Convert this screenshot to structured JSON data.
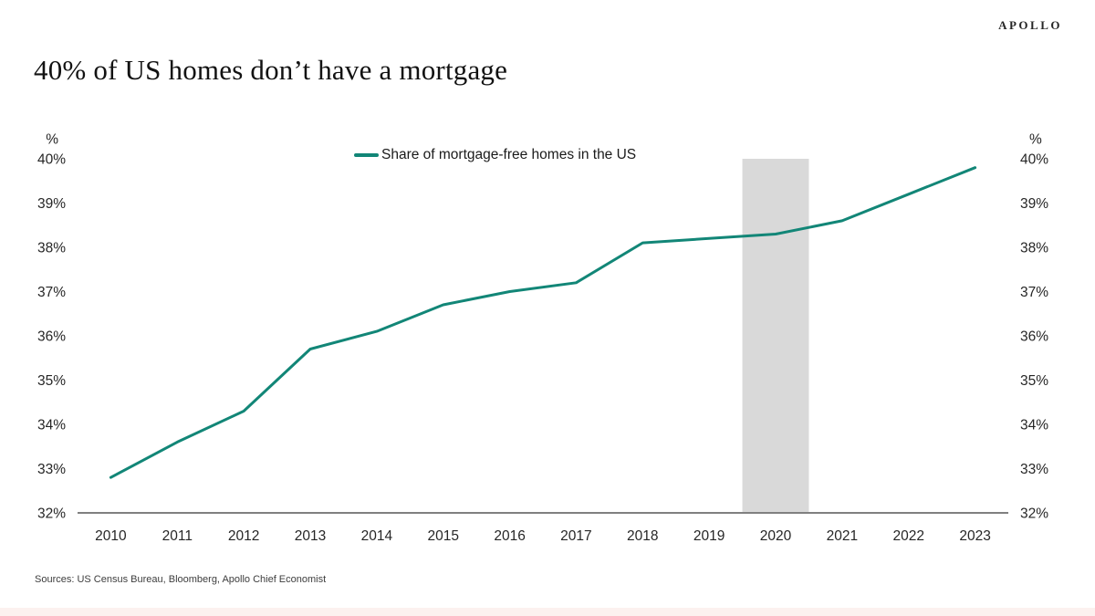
{
  "brand": {
    "logo": "APOLLO"
  },
  "header": {
    "title": "40% of US homes don’t have a mortgage"
  },
  "legend": {
    "label": "Share of mortgage-free homes in the US"
  },
  "footer": {
    "sources": "Sources: US Census Bureau, Bloomberg, Apollo Chief Economist"
  },
  "colors": {
    "line": "#128677",
    "band": "#d9d9d9",
    "axis": "#808080",
    "tick_text": "#262626",
    "accent_strip": "#fcf1ef"
  },
  "chart_data": {
    "type": "line",
    "title": "40% of US homes don't have a mortgage",
    "categories": [
      "2010",
      "2011",
      "2012",
      "2013",
      "2014",
      "2015",
      "2016",
      "2017",
      "2018",
      "2019",
      "2020",
      "2021",
      "2022",
      "2023"
    ],
    "series": [
      {
        "name": "Share of mortgage-free homes in the US",
        "values": [
          32.8,
          33.6,
          34.3,
          35.7,
          36.1,
          36.7,
          37.0,
          37.2,
          38.1,
          38.2,
          38.3,
          38.6,
          39.2,
          39.8
        ]
      }
    ],
    "xlabel": "",
    "ylabel": "%",
    "ylim": [
      32,
      40
    ],
    "ytick_step": 1,
    "ytick_suffix": "%",
    "axis_unit_symbol": "%",
    "dual_y_axis": true,
    "grid": false,
    "legend_position": "top-center",
    "shaded_band": {
      "category": "2020",
      "note": "recession shading"
    }
  }
}
